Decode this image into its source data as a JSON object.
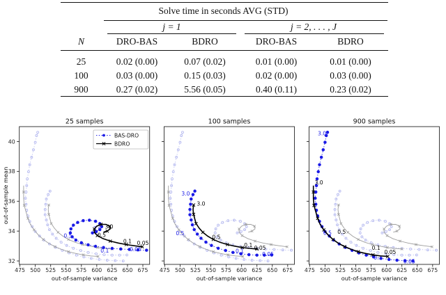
{
  "table": {
    "title": "Solve time in seconds AVG (STD)",
    "n_header": "N",
    "col_groups": [
      "j = 1",
      "j = 2, . . . , J"
    ],
    "sub_headers": [
      "DRO-BAS",
      "BDRO",
      "DRO-BAS",
      "BDRO"
    ],
    "rows": [
      {
        "n": "25",
        "cells": [
          "0.02 (0.00)",
          "0.07 (0.02)",
          "0.01 (0.00)",
          "0.01 (0.00)"
        ]
      },
      {
        "n": "100",
        "cells": [
          "0.03 (0.00)",
          "0.15 (0.03)",
          "0.02 (0.00)",
          "0.03 (0.00)"
        ]
      },
      {
        "n": "900",
        "cells": [
          "0.27 (0.02)",
          "5.56 (0.05)",
          "0.40 (0.11)",
          "0.23 (0.02)"
        ]
      }
    ]
  },
  "chart_data": {
    "type": "line",
    "xlabel": "out-of-sample variance",
    "ylabel": "out-of-sample mean",
    "xlim": [
      474,
      686
    ],
    "ylim": [
      31.77,
      41.0
    ],
    "xticks": [
      475,
      500,
      525,
      550,
      575,
      600,
      625,
      650,
      675
    ],
    "yticks": [
      32,
      34,
      36,
      38,
      40
    ],
    "grid": false,
    "colors": {
      "bas_dro": "#1a1ae6",
      "bdro": "#000000",
      "bas_dro_faded": "#b8bcf0",
      "bdro_faded": "#9e9e9e"
    },
    "legend": {
      "panel": 0,
      "position": "upper right",
      "entries": [
        {
          "label": "BAS-DRO",
          "style": "dotted-dot-marker",
          "color": "#1a1ae6"
        },
        {
          "label": "BDRO",
          "style": "solid-x-marker",
          "color": "#000000"
        }
      ]
    },
    "panels": [
      {
        "title": "25 samples",
        "highlight_n": 25
      },
      {
        "title": "100 samples",
        "highlight_n": 100
      },
      {
        "title": "900 samples",
        "highlight_n": 900
      }
    ],
    "series": [
      {
        "name": "BAS-DRO N=25",
        "method": "BAS-DRO",
        "n": 25,
        "points": [
          [
            681,
            32.72
          ],
          [
            667,
            32.74
          ],
          [
            653,
            32.77
          ],
          [
            639,
            32.8
          ],
          [
            625,
            32.84
          ],
          [
            611,
            32.9
          ],
          [
            598,
            32.98
          ],
          [
            586,
            33.08
          ],
          [
            575,
            33.22
          ],
          [
            566,
            33.4
          ],
          [
            560,
            33.62
          ],
          [
            557,
            33.88
          ],
          [
            558,
            34.15
          ],
          [
            562,
            34.4
          ],
          [
            569,
            34.58
          ],
          [
            578,
            34.7
          ],
          [
            588,
            34.73
          ],
          [
            598,
            34.66
          ],
          [
            605,
            34.5
          ],
          [
            608,
            34.3
          ],
          [
            605,
            34.1
          ],
          [
            599,
            33.96
          ],
          [
            593,
            33.88
          ]
        ],
        "annotations": [
          {
            "text": "3.0",
            "x": 601,
            "y": 34.15
          },
          {
            "text": "0.5",
            "x": 553,
            "y": 33.68
          },
          {
            "text": "0.1",
            "x": 613,
            "y": 32.68
          },
          {
            "text": "0.05",
            "x": 663,
            "y": 32.78
          }
        ]
      },
      {
        "name": "BDRO N=25",
        "method": "BDRO",
        "n": 25,
        "points": [
          [
            674,
            32.95
          ],
          [
            661,
            33.02
          ],
          [
            648,
            33.1
          ],
          [
            635,
            33.2
          ],
          [
            622,
            33.33
          ],
          [
            610,
            33.5
          ],
          [
            601,
            33.7
          ],
          [
            596,
            33.92
          ],
          [
            596,
            34.14
          ],
          [
            600,
            34.33
          ],
          [
            607,
            34.45
          ],
          [
            615,
            34.45
          ],
          [
            621,
            34.33
          ],
          [
            622,
            34.15
          ],
          [
            617,
            34.0
          ],
          [
            611,
            33.93
          ]
        ],
        "annotations": [
          {
            "text": "3.0",
            "x": 620,
            "y": 34.3
          },
          {
            "text": "0.5",
            "x": 608,
            "y": 33.73
          },
          {
            "text": "0.1",
            "x": 650,
            "y": 33.32
          },
          {
            "text": "0.05",
            "x": 675,
            "y": 33.2
          }
        ]
      },
      {
        "name": "BAS-DRO N=100",
        "method": "BAS-DRO",
        "n": 100,
        "points": [
          [
            649,
            32.4
          ],
          [
            637,
            32.39
          ],
          [
            625,
            32.39
          ],
          [
            612,
            32.42
          ],
          [
            599,
            32.48
          ],
          [
            586,
            32.57
          ],
          [
            574,
            32.7
          ],
          [
            562,
            32.85
          ],
          [
            551,
            33.04
          ],
          [
            542,
            33.26
          ],
          [
            534,
            33.52
          ],
          [
            528,
            33.8
          ],
          [
            523,
            34.1
          ],
          [
            520,
            34.42
          ],
          [
            518,
            34.75
          ],
          [
            516,
            35.1
          ],
          [
            516,
            35.45
          ],
          [
            517,
            35.8
          ],
          [
            518,
            36.15
          ],
          [
            521,
            36.45
          ],
          [
            524,
            36.68
          ]
        ],
        "annotations": [
          {
            "text": "3.0",
            "x": 509,
            "y": 36.5
          },
          {
            "text": "0.5",
            "x": 500,
            "y": 33.85
          },
          {
            "text": "0.1",
            "x": 597,
            "y": 32.66
          },
          {
            "text": "0.05",
            "x": 643,
            "y": 32.45
          }
        ]
      },
      {
        "name": "BDRO N=100",
        "method": "BDRO",
        "n": 100,
        "points": [
          [
            625,
            32.8
          ],
          [
            613,
            32.84
          ],
          [
            601,
            32.9
          ],
          [
            589,
            32.99
          ],
          [
            577,
            33.1
          ],
          [
            565,
            33.25
          ],
          [
            554,
            33.44
          ],
          [
            545,
            33.66
          ],
          [
            537,
            33.92
          ],
          [
            531,
            34.2
          ],
          [
            526,
            34.5
          ],
          [
            524,
            34.8
          ],
          [
            522,
            35.12
          ],
          [
            521,
            35.45
          ],
          [
            522,
            35.75
          ]
        ],
        "annotations": [
          {
            "text": "3.0",
            "x": 534,
            "y": 35.82
          },
          {
            "text": "0.5",
            "x": 559,
            "y": 33.6
          },
          {
            "text": "0.1",
            "x": 611,
            "y": 33.05
          },
          {
            "text": "0.05",
            "x": 630,
            "y": 32.88
          }
        ]
      },
      {
        "name": "BAS-DRO N=900",
        "method": "BAS-DRO",
        "n": 900,
        "points": [
          [
            643,
            32.0
          ],
          [
            630,
            32.02
          ],
          [
            617,
            32.05
          ],
          [
            604,
            32.1
          ],
          [
            591,
            32.17
          ],
          [
            579,
            32.27
          ],
          [
            567,
            32.39
          ],
          [
            555,
            32.54
          ],
          [
            544,
            32.71
          ],
          [
            533,
            32.91
          ],
          [
            523,
            33.14
          ],
          [
            514,
            33.4
          ],
          [
            507,
            33.67
          ],
          [
            500,
            33.97
          ],
          [
            495,
            34.3
          ],
          [
            491,
            34.65
          ],
          [
            488,
            35.02
          ],
          [
            486,
            35.4
          ],
          [
            485,
            35.8
          ],
          [
            484,
            36.2
          ],
          [
            485,
            36.62
          ],
          [
            486,
            37.05
          ],
          [
            487,
            37.5
          ],
          [
            489,
            37.98
          ],
          [
            491,
            38.45
          ],
          [
            494,
            38.95
          ],
          [
            497,
            39.45
          ],
          [
            500,
            39.95
          ],
          [
            502,
            40.4
          ],
          [
            504,
            40.62
          ]
        ],
        "annotations": [
          {
            "text": "3.0",
            "x": 495,
            "y": 40.55
          },
          {
            "text": "0.5",
            "x": 504,
            "y": 33.88
          },
          {
            "text": "0.1",
            "x": 586,
            "y": 32.22
          },
          {
            "text": "0.05",
            "x": 637,
            "y": 31.95
          }
        ]
      },
      {
        "name": "BDRO N=900",
        "method": "BDRO",
        "n": 900,
        "points": [
          [
            602,
            32.3
          ],
          [
            590,
            32.34
          ],
          [
            578,
            32.41
          ],
          [
            566,
            32.5
          ],
          [
            554,
            32.62
          ],
          [
            543,
            32.77
          ],
          [
            532,
            32.96
          ],
          [
            522,
            33.18
          ],
          [
            513,
            33.44
          ],
          [
            505,
            33.74
          ],
          [
            498,
            34.08
          ],
          [
            492,
            34.45
          ],
          [
            488,
            34.85
          ],
          [
            485,
            35.28
          ],
          [
            482,
            35.72
          ],
          [
            481,
            36.17
          ],
          [
            481,
            36.62
          ],
          [
            481,
            37.05
          ]
        ],
        "annotations": [
          {
            "text": "3.0",
            "x": 490,
            "y": 37.25
          },
          {
            "text": "0.5",
            "x": 527,
            "y": 33.95
          },
          {
            "text": "0.1",
            "x": 583,
            "y": 32.88
          },
          {
            "text": "0.05",
            "x": 606,
            "y": 32.58
          }
        ]
      }
    ]
  }
}
